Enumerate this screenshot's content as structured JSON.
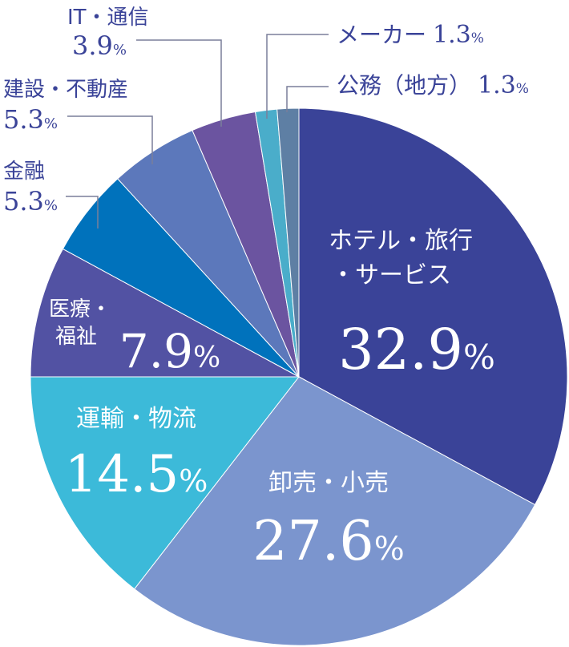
{
  "chart_data": {
    "type": "pie",
    "title": "",
    "start_angle_deg": 0,
    "direction": "clockwise",
    "slices": [
      {
        "label": "ホテル・旅行・サービス",
        "value": 32.9,
        "display": "32.9%",
        "color": "#3a4398"
      },
      {
        "label": "卸売・小売",
        "value": 27.6,
        "display": "27.6%",
        "color": "#7b95ce"
      },
      {
        "label": "運輸・物流",
        "value": 14.5,
        "display": "14.5%",
        "color": "#3cbad9"
      },
      {
        "label": "医療・福祉",
        "value": 7.9,
        "display": "7.9%",
        "color": "#5252a3"
      },
      {
        "label": "金融",
        "value": 5.3,
        "display": "5.3%",
        "color": "#0072bc"
      },
      {
        "label": "建設・不動産",
        "value": 5.3,
        "display": "5.3%",
        "color": "#5c78bb"
      },
      {
        "label": "IT・通信",
        "value": 3.9,
        "display": "3.9%",
        "color": "#6b54a0"
      },
      {
        "label": "メーカー",
        "value": 1.3,
        "display": "1.3%",
        "color": "#4aadca"
      },
      {
        "label": "公務（地方）",
        "value": 1.3,
        "display": "1.3%",
        "color": "#5e7fa4"
      }
    ],
    "inside_labels": [
      {
        "name": "ホテル・旅行",
        "name2": "・サービス",
        "num": "32.9",
        "unit": "%"
      },
      {
        "name": "卸売・小売",
        "num": "27.6",
        "unit": "%"
      },
      {
        "name": "運輸・物流",
        "num": "14.5",
        "unit": "%"
      },
      {
        "name": "医療・",
        "name2": "福祉",
        "num": "7.9",
        "unit": "%"
      }
    ],
    "outside_labels": [
      {
        "name": "金融",
        "num": "5.3",
        "unit": "%"
      },
      {
        "name": "建設・不動産",
        "num": "5.3",
        "unit": "%"
      },
      {
        "name": "IT・通信",
        "num": "3.9",
        "unit": "%"
      },
      {
        "name": "メーカー",
        "num": "1.3",
        "unit": "%"
      },
      {
        "name": "公務（地方）",
        "num": "1.3",
        "unit": "%"
      }
    ],
    "text_color": "#3a4398",
    "inside_text_color": "#ffffff",
    "leader_color": "#7a7f9a"
  }
}
